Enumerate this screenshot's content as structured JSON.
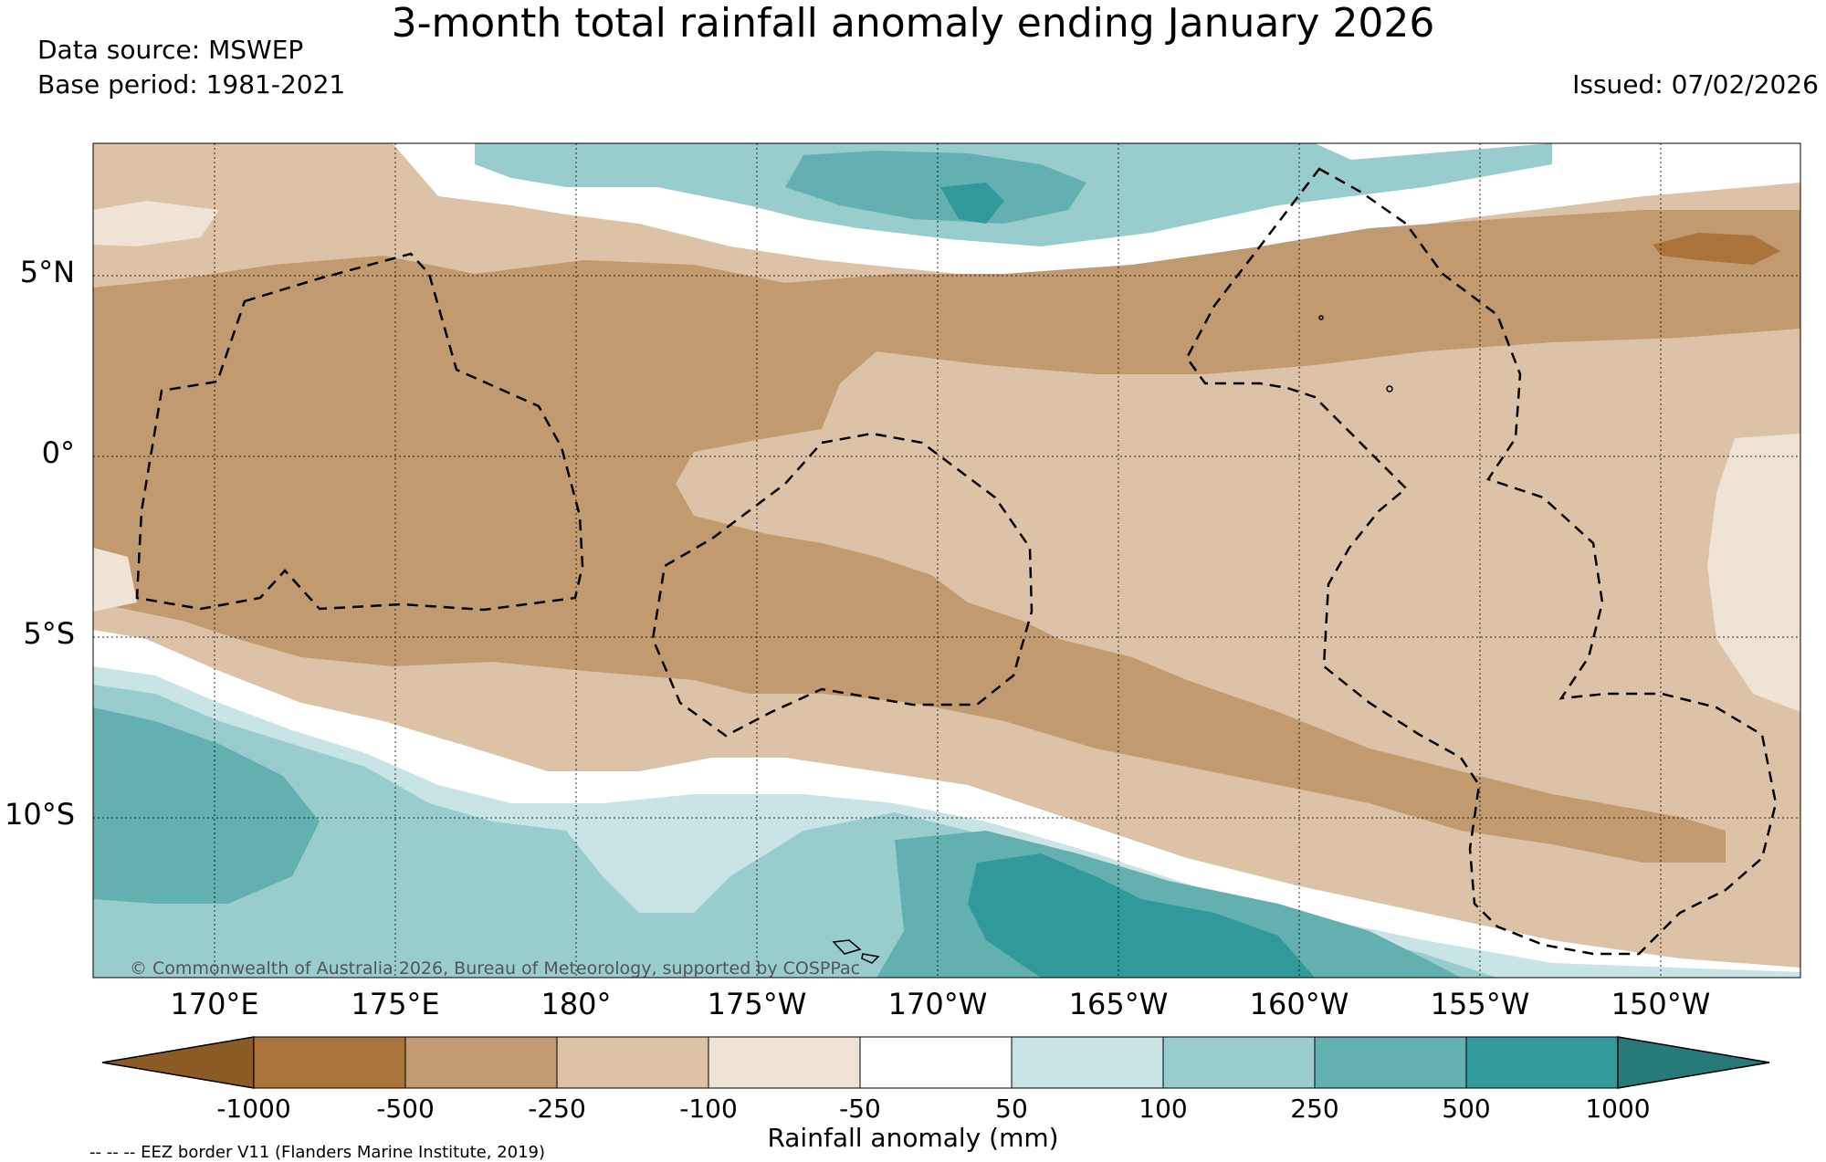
{
  "title": "3-month total rainfall anomaly ending January 2026",
  "data_source": "Data source: MSWEP",
  "base_period": "Base period: 1981-2021",
  "issued": "Issued: 07/02/2026",
  "copyright": "© Commonwealth of Australia 2026, Bureau of Meteorology, supported by COSPPac",
  "lat_labels": [
    "5°N",
    "0°",
    "5°S",
    "10°S"
  ],
  "lon_labels": [
    "170°E",
    "175°E",
    "180°",
    "175°W",
    "170°W",
    "165°W",
    "160°W",
    "155°W",
    "150°W"
  ],
  "colorbar": {
    "title": "Rainfall anomaly (mm)",
    "ticks": [
      "-1000",
      "-500",
      "-250",
      "-100",
      "-50",
      "50",
      "100",
      "250",
      "500",
      "1000"
    ],
    "colors": [
      "#8c5a24",
      "#a97339",
      "#c29a6f",
      "#dcc2a6",
      "#efe3d6",
      "#ffffff",
      "#c8e4e4",
      "#99cccc",
      "#63b0b0",
      "#31999a",
      "#267a7a"
    ]
  },
  "eez_note": "-- -- -- EEZ border V11 (Flanders Marine Institute, 2019)"
}
